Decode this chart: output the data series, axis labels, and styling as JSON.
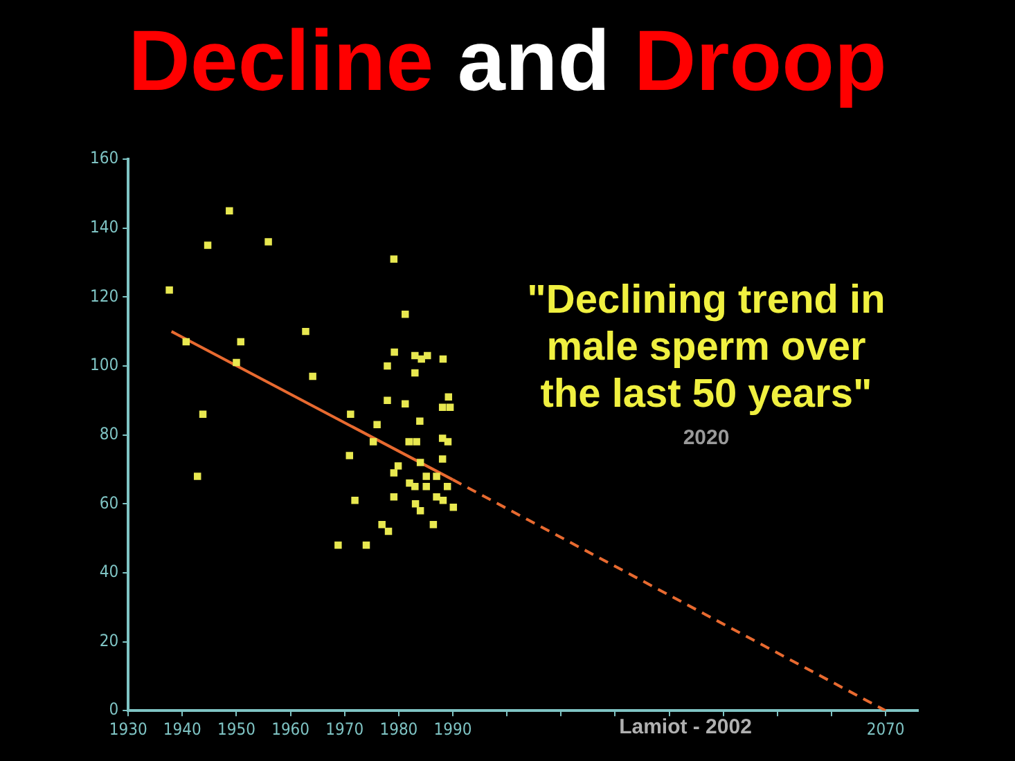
{
  "chart_data": {
    "type": "scatter",
    "title": "Decline and Droop",
    "annotations": [
      "\"Declining trend in male sperm over the last 50 years\"",
      "2020",
      "Lamiot - 2002"
    ],
    "xlim": [
      1930,
      2076
    ],
    "ylim": [
      0,
      160
    ],
    "xticks": [
      1930,
      1940,
      1950,
      1960,
      1970,
      1980,
      1990,
      {
        "value": 2000,
        "label": null
      },
      {
        "value": 2010,
        "label": null
      },
      {
        "value": 2020,
        "label": null
      },
      {
        "value": 2030,
        "label": null
      },
      {
        "value": 2040,
        "label": null
      },
      {
        "value": 2050,
        "label": null
      },
      {
        "value": 2060,
        "label": null
      },
      2070
    ],
    "yticks": [
      0,
      20,
      40,
      60,
      80,
      100,
      120,
      140,
      160
    ],
    "grid": false,
    "legend": false,
    "marker": "square",
    "series": [
      {
        "color": "#e8e850",
        "x": [
          1937.6,
          1940.7,
          1944.7,
          1943.8,
          1942.8,
          1948.7,
          1950.8,
          1950.0,
          1955.9,
          1962.8,
          1964.1,
          1968.8,
          1971.1,
          1970.9,
          1971.9,
          1974.0,
          1976.0,
          1975.3,
          1976.9,
          1978.1,
          1977.9,
          1977.9,
          1979.1,
          1979.2,
          1979.1,
          1979.9,
          1979.1,
          1981.2,
          1981.2,
          1981.9,
          1983.3,
          1983.0,
          1983.0,
          1984.2,
          1985.3,
          1983.9,
          1984.0,
          1982.0,
          1983.0,
          1985.1,
          1985.1,
          1983.1,
          1984.0,
          1987.0,
          1987.0,
          1988.2,
          1986.4,
          1988.2,
          1988.1,
          1989.5,
          1989.2,
          1988.1,
          1989.1,
          1988.1,
          1989.0,
          1990.1
        ],
        "values": [
          122,
          107,
          135,
          86,
          68,
          145,
          107,
          101,
          136,
          110,
          97,
          48,
          86,
          74,
          61,
          48,
          83,
          78,
          54,
          52,
          100,
          90,
          131,
          104,
          69,
          71,
          62,
          115,
          89,
          78,
          78,
          103,
          98,
          102,
          103,
          84,
          72,
          66,
          65,
          68,
          65,
          60,
          58,
          68,
          62,
          61,
          54,
          102,
          88,
          88,
          91,
          79,
          78,
          73,
          65,
          59
        ]
      },
      {
        "type": "line",
        "color": "#e86a30",
        "marker": "none",
        "line_style": "solid",
        "x": [
          1938,
          1990
        ],
        "values": [
          110,
          67
        ]
      },
      {
        "type": "line",
        "color": "#e86a30",
        "marker": "none",
        "line_style": "dashed",
        "x": [
          1990,
          2070
        ],
        "values": [
          67,
          0
        ]
      }
    ]
  }
}
